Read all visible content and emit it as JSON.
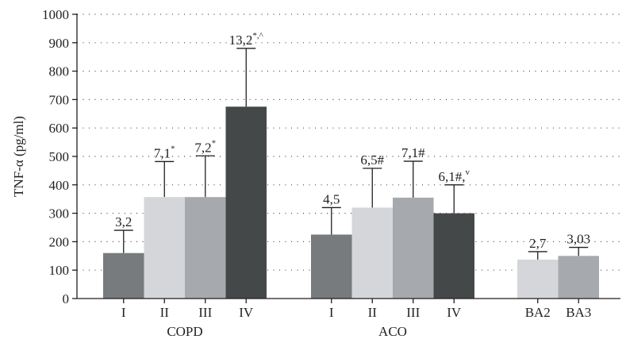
{
  "chart_data": {
    "type": "bar",
    "ylabel": "TNF-α (pg/ml)",
    "ylim": [
      0,
      1000
    ],
    "yticks": [
      0,
      100,
      200,
      300,
      400,
      500,
      600,
      700,
      800,
      900,
      1000
    ],
    "grid": true,
    "groups": [
      {
        "name": "COPD",
        "bars": [
          {
            "category": "I",
            "value": 160,
            "error": 80,
            "label": "3,2",
            "sup": "",
            "color": "#777b7e"
          },
          {
            "category": "II",
            "value": 357,
            "error": 125,
            "label": "7,1",
            "sup": "*",
            "color": "#d4d6da"
          },
          {
            "category": "III",
            "value": 357,
            "error": 145,
            "label": "7,2",
            "sup": "*",
            "color": "#a6a9ae"
          },
          {
            "category": "IV",
            "value": 675,
            "error": 205,
            "label": "13,2",
            "sup": "*,^",
            "color": "#454849"
          }
        ]
      },
      {
        "name": "ACO",
        "bars": [
          {
            "category": "I",
            "value": 225,
            "error": 95,
            "label": "4,5",
            "sup": "",
            "color": "#777b7e"
          },
          {
            "category": "II",
            "value": 320,
            "error": 138,
            "label": "6,5#",
            "sup": "",
            "color": "#d4d6da"
          },
          {
            "category": "III",
            "value": 355,
            "error": 128,
            "label": "7,1#",
            "sup": "",
            "color": "#a6a9ae"
          },
          {
            "category": "IV",
            "value": 300,
            "error": 100,
            "label": "6,1#,",
            "sup": "v",
            "color": "#454849"
          }
        ]
      },
      {
        "name": "",
        "bars": [
          {
            "category": "BA2",
            "value": 137,
            "error": 28,
            "label": "2,7",
            "sup": "",
            "color": "#d4d6da"
          },
          {
            "category": "BA3",
            "value": 150,
            "error": 30,
            "label": "3,03",
            "sup": "",
            "color": "#a6a9ae"
          }
        ]
      }
    ]
  }
}
